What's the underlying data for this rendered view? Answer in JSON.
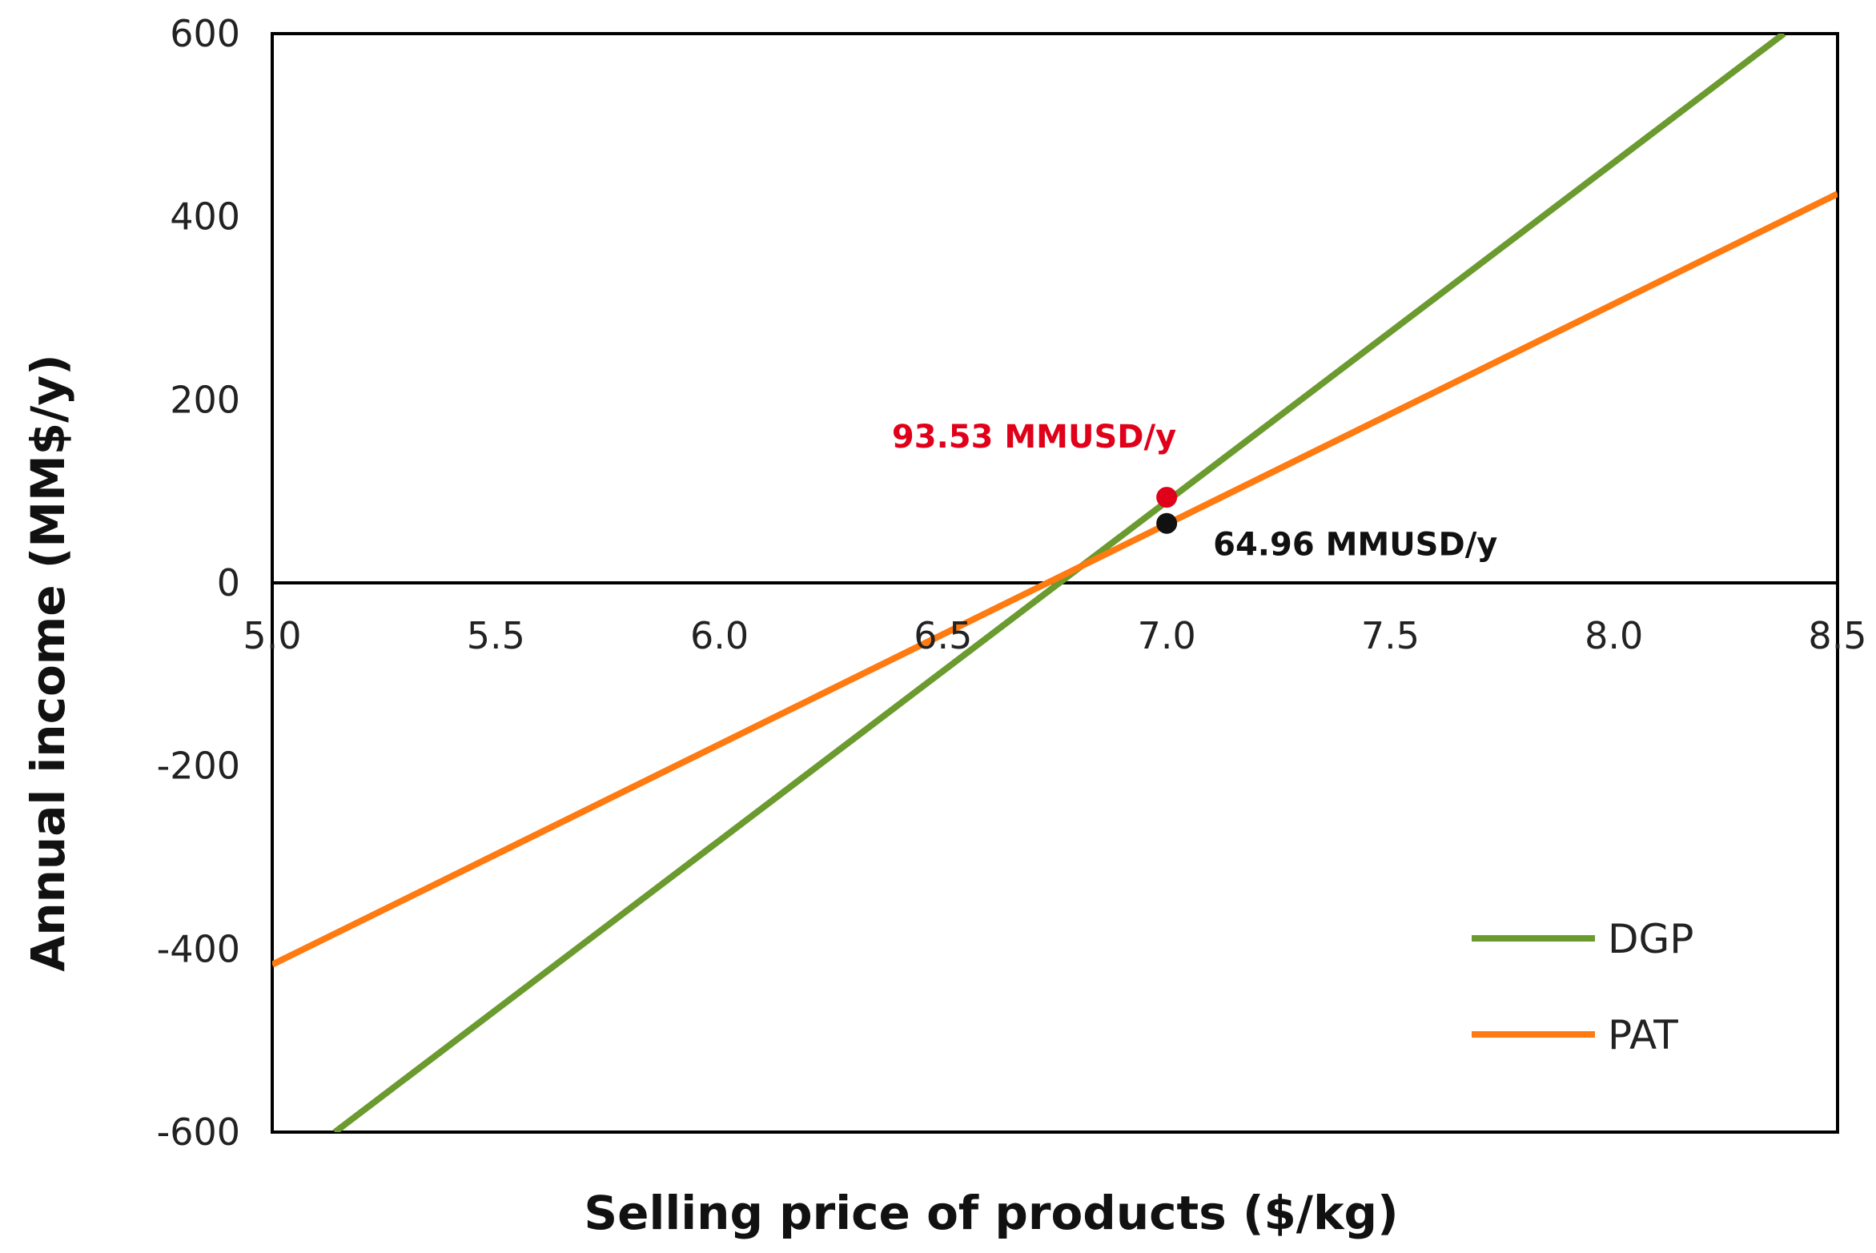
{
  "chart_data": {
    "type": "line",
    "xlabel": "Selling price of products ($/kg)",
    "ylabel": "Annual income (MM$/y)",
    "xlim": [
      5.0,
      8.5
    ],
    "ylim": [
      -600,
      600
    ],
    "xticks": [
      "5.0",
      "5.5",
      "6.0",
      "6.5",
      "7.0",
      "7.5",
      "8.0",
      "8.5"
    ],
    "yticks": [
      "600",
      "400",
      "200",
      "0",
      "-200",
      "-400",
      "-600"
    ],
    "xtick_values": [
      5.0,
      5.5,
      6.0,
      6.5,
      7.0,
      7.5,
      8.0,
      8.5
    ],
    "ytick_values": [
      600,
      400,
      200,
      0,
      -200,
      -400,
      -600
    ],
    "grid": false,
    "legend_position": "bottom-right",
    "series": [
      {
        "name": "DGP",
        "color": "#6b9a2f",
        "x": [
          5.14,
          8.38
        ],
        "y": [
          -600,
          600
        ]
      },
      {
        "name": "PAT",
        "color": "#ff7a10",
        "x": [
          5.0,
          8.5
        ],
        "y": [
          -417,
          425
        ]
      }
    ],
    "annotations": [
      {
        "text": "93.53 MMUSD/y",
        "x": 7.0,
        "y": 93.53,
        "color": "#e0001a",
        "label_position": "above-left"
      },
      {
        "text": "64.96 MMUSD/y",
        "x": 7.0,
        "y": 64.96,
        "color": "#111111",
        "label_position": "below-right"
      }
    ]
  }
}
